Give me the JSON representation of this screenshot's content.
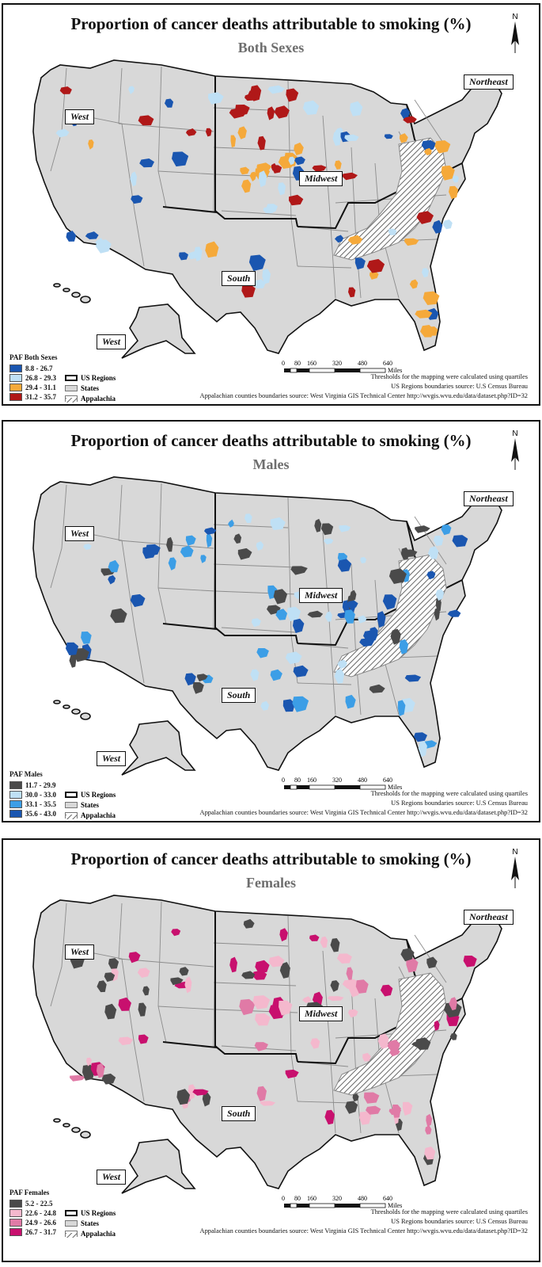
{
  "panels": [
    {
      "title": "Proportion of cancer deaths attributable to smoking (%)",
      "subtitle": "Both Sexes",
      "legend_title": "PAF Both Sexes",
      "classes": [
        {
          "label": "8.8 - 26.7",
          "color": "#1a56b0"
        },
        {
          "label": "26.8 - 29.3",
          "color": "#bfe0f5"
        },
        {
          "label": "29.4 - 31.1",
          "color": "#f5a93a"
        },
        {
          "label": "31.2 - 35.7",
          "color": "#b01818"
        }
      ]
    },
    {
      "title": "Proportion of cancer deaths attributable to smoking (%)",
      "subtitle": "Males",
      "legend_title": "PAF Males",
      "classes": [
        {
          "label": "11.7 - 29.9",
          "color": "#4a4a4a"
        },
        {
          "label": "30.0 - 33.0",
          "color": "#bfe0f5"
        },
        {
          "label": "33.1 - 35.5",
          "color": "#3c9ee6"
        },
        {
          "label": "35.6 - 43.0",
          "color": "#1a56b0"
        }
      ]
    },
    {
      "title": "Proportion of cancer deaths attributable to smoking (%)",
      "subtitle": "Females",
      "legend_title": "PAF Females",
      "classes": [
        {
          "label": "5.2 - 22.5",
          "color": "#4a4a4a"
        },
        {
          "label": "22.6 - 24.8",
          "color": "#f4b8cd"
        },
        {
          "label": "24.9 - 26.6",
          "color": "#e07aa6"
        },
        {
          "label": "26.7 - 31.7",
          "color": "#c8106e"
        }
      ]
    }
  ],
  "regions": {
    "west": "West",
    "midwest": "Midwest",
    "south": "South",
    "northeast": "Northeast"
  },
  "north_label": "N",
  "legend_extra": {
    "us_regions": "US Regions",
    "states": "States",
    "appalachia": "Appalachia"
  },
  "scale": {
    "ticks": [
      "0",
      "80",
      "160",
      "320",
      "480",
      "640"
    ],
    "unit": "Miles"
  },
  "notes": {
    "thresholds": "Thresholds for the mapping were calculated using quartiles",
    "regions_source": "US Regions boundaries source: U.S Census Bureau",
    "appalachia_source": "Appalachian counties boundaries source: West Virginia GIS Technical Center http://wvgis.wvu.edu/data/dataset.php?ID=32"
  },
  "colors": {
    "state_fill": "#d8d8d8",
    "state_line": "#8c8c8c",
    "region_line": "#111111"
  }
}
